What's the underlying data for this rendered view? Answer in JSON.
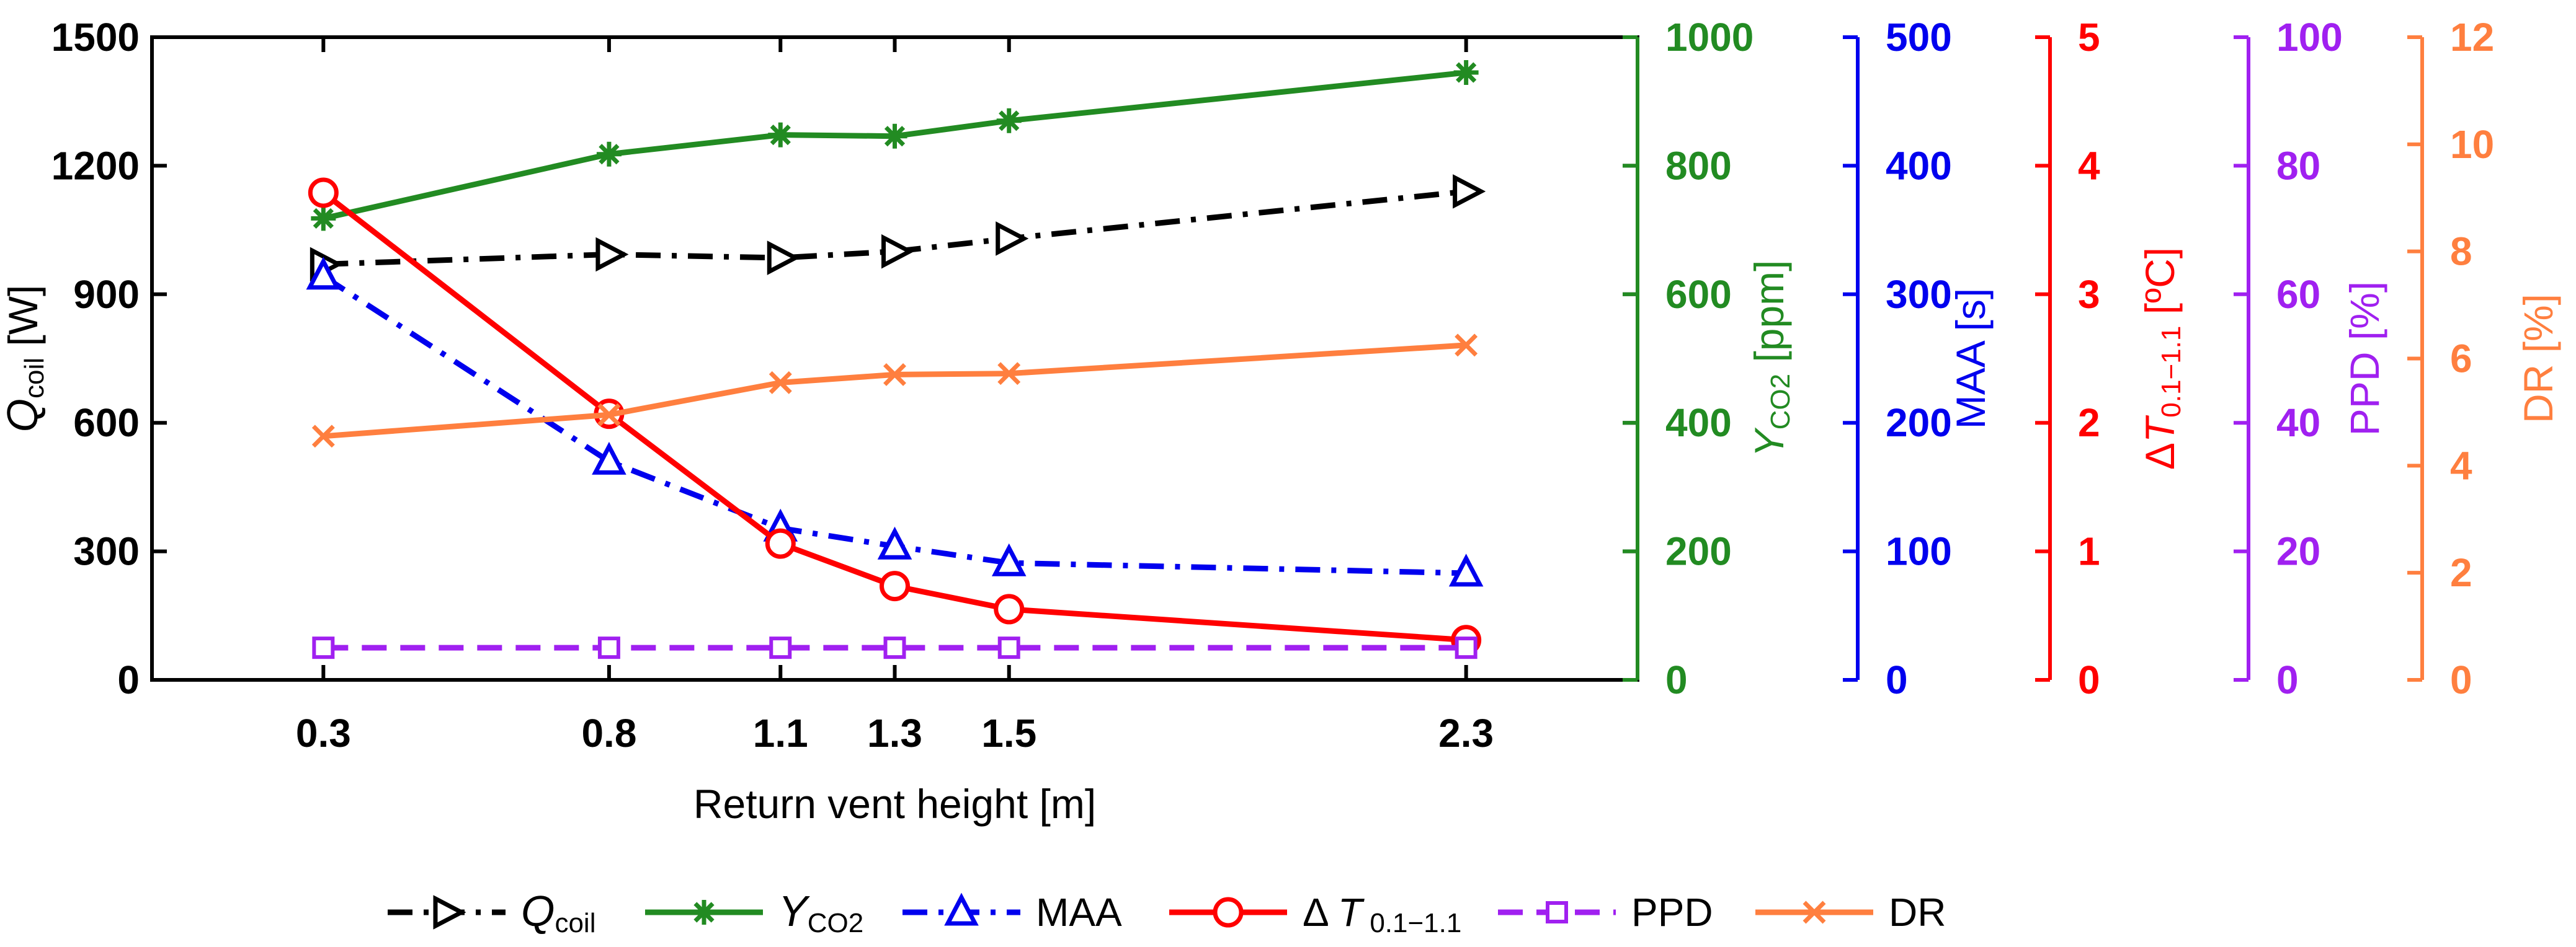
{
  "chart_data": {
    "type": "line",
    "xlabel": "Return vent height [m]",
    "x": [
      0.3,
      0.8,
      1.1,
      1.3,
      1.5,
      2.3
    ],
    "x_tick_labels": [
      "0.3",
      "0.8",
      "1.1",
      "1.3",
      "1.5",
      "2.3"
    ],
    "xlim": [
      0.0,
      2.6
    ],
    "grid": false,
    "legend_placement": "bottom",
    "axes": [
      {
        "id": "qcoil",
        "side": "left",
        "ylim": [
          0,
          1500
        ],
        "ticks": [
          "0",
          "300",
          "600",
          "900",
          "1200",
          "1500"
        ],
        "label_main": "Q",
        "label_sub": "coil",
        "label_unit": " [W]",
        "color": "#000000"
      },
      {
        "id": "yco2",
        "side": "right",
        "ylim": [
          0,
          1000
        ],
        "ticks": [
          "0",
          "200",
          "400",
          "600",
          "800",
          "1000"
        ],
        "label_main": "Y",
        "label_sub": "CO2",
        "label_unit": " [ppm]",
        "color": "#228B22"
      },
      {
        "id": "maa",
        "side": "right",
        "ylim": [
          0,
          500
        ],
        "ticks": [
          "0",
          "100",
          "200",
          "300",
          "400",
          "500"
        ],
        "label_main": "MAA [s]",
        "label_sub": "",
        "label_unit": "",
        "color": "#0000EE"
      },
      {
        "id": "dt",
        "side": "right",
        "ylim": [
          0,
          5
        ],
        "ticks": [
          "0",
          "1",
          "2",
          "3",
          "4",
          "5"
        ],
        "label_main": "ΔT",
        "label_sub": "0.1−1.1",
        "label_unit": " [ºC]",
        "color": "#FF0000"
      },
      {
        "id": "ppd",
        "side": "right",
        "ylim": [
          0,
          100
        ],
        "ticks": [
          "0",
          "20",
          "40",
          "60",
          "80",
          "100"
        ],
        "label_main": "PPD [%]",
        "label_sub": "",
        "label_unit": "",
        "color": "#A020F0"
      },
      {
        "id": "dr",
        "side": "right",
        "ylim": [
          0,
          12
        ],
        "ticks": [
          "0",
          "2",
          "4",
          "6",
          "8",
          "10",
          "12"
        ],
        "label_main": "DR [%]",
        "label_sub": "",
        "label_unit": "",
        "color": "#FF7F3F"
      }
    ],
    "series": [
      {
        "id": "qcoil",
        "axis": "qcoil",
        "legend_main": "Q",
        "legend_sub": "coil",
        "color": "#000000",
        "dash": "dashdot",
        "marker": "triangle-right",
        "values": [
          970,
          993,
          985,
          1000,
          1030,
          1140
        ]
      },
      {
        "id": "yco2",
        "axis": "yco2",
        "legend_main": "Y",
        "legend_sub": "CO2",
        "color": "#228B22",
        "dash": "solid",
        "marker": "asterisk",
        "values": [
          718,
          818,
          848,
          846,
          870,
          945
        ]
      },
      {
        "id": "maa",
        "axis": "maa",
        "legend_main": "MAA",
        "legend_sub": "",
        "color": "#0000EE",
        "dash": "dashdot",
        "marker": "triangle-up",
        "values": [
          314,
          170,
          118,
          104,
          91,
          83
        ]
      },
      {
        "id": "dt",
        "axis": "dt",
        "legend_main": "Δ T",
        "legend_sub": " 0.1−1.1",
        "color": "#FF0000",
        "dash": "solid",
        "marker": "circle",
        "values": [
          3.79,
          2.07,
          1.06,
          0.73,
          0.55,
          0.31
        ]
      },
      {
        "id": "ppd",
        "axis": "ppd",
        "legend_main": "PPD",
        "legend_sub": "",
        "color": "#A020F0",
        "dash": "dashed",
        "marker": "square",
        "values": [
          5,
          5,
          5,
          5,
          5,
          5
        ]
      },
      {
        "id": "dr",
        "axis": "dr",
        "legend_main": "DR",
        "legend_sub": "",
        "color": "#FF7F3F",
        "dash": "solid",
        "marker": "x",
        "values": [
          4.55,
          4.95,
          5.55,
          5.7,
          5.72,
          6.25
        ]
      }
    ]
  }
}
